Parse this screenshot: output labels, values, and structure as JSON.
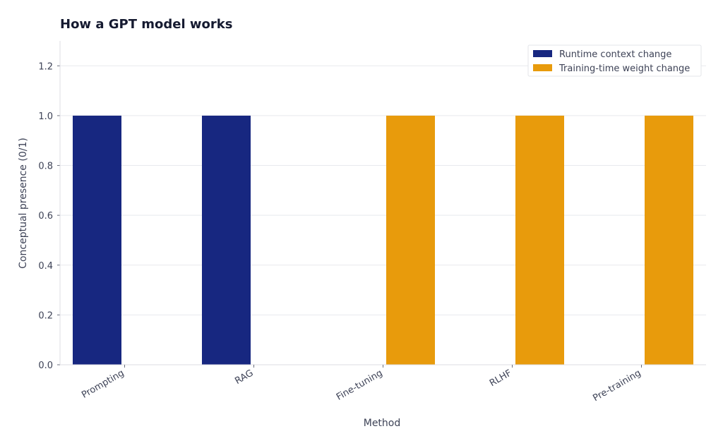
{
  "chart_data": {
    "type": "bar",
    "title": "How a GPT model works",
    "xlabel": "Method",
    "ylabel": "Conceptual presence (0/1)",
    "categories": [
      "Prompting",
      "RAG",
      "Fine-tuning",
      "RLHF",
      "Pre-training"
    ],
    "series": [
      {
        "name": "Runtime context change",
        "values": [
          1,
          1,
          0,
          0,
          0
        ],
        "color": "#172780"
      },
      {
        "name": "Training-time weight change",
        "values": [
          0,
          0,
          1,
          1,
          1
        ],
        "color": "#e89b0c"
      }
    ],
    "ylim": [
      0,
      1.3
    ],
    "yticks": [
      "0.0",
      "0.2",
      "0.4",
      "0.6",
      "0.8",
      "1.0",
      "1.2"
    ],
    "grid": true,
    "legend_position": "top-right",
    "colors": {
      "title": "#151a30",
      "text": "#3d4256",
      "grid": "#e8e9ee",
      "axis": "#dcdde3"
    }
  }
}
